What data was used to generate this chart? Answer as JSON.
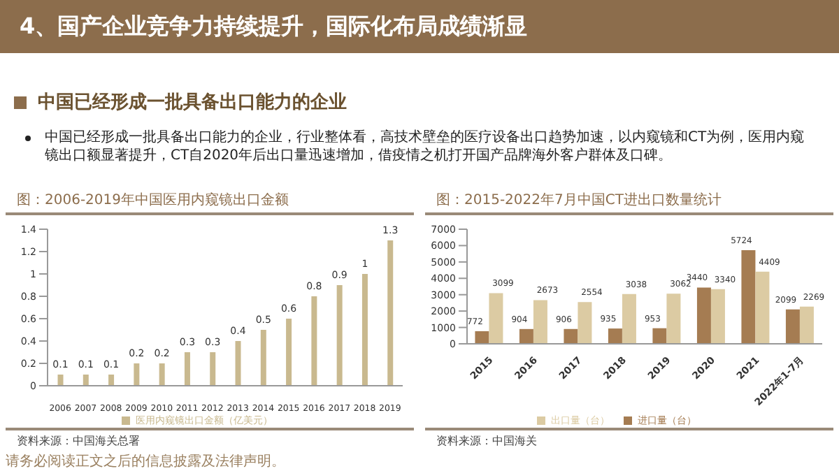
{
  "chart_data": [
    {
      "type": "other",
      "title": "4、国产企业竞争力持续提升，国际化布局成绩渐显",
      "subtitle": "中国已经形成一批具备出口能力的企业",
      "annotations": [
        "中国已经形成一批具备出口能力的企业，行业整体看，高技术壁垒的医疗设备出口趋势加速，以内窥镜和CT为例，医用内窥镜出口额显著提升，CT自2020年后出口量迅速增加，借疫情之机打开国产品牌海外客户群体及口碑。",
        "请务必阅读正文之后的信息披露及法律声明。"
      ]
    },
    {
      "type": "bar",
      "title": "图：2006-2019年中国医用内窥镜出口金额",
      "categories": [
        "2006",
        "2007",
        "2008",
        "2009",
        "2010",
        "2011",
        "2012",
        "2013",
        "2014",
        "2015",
        "2016",
        "2017",
        "2018",
        "2019"
      ],
      "series": [
        {
          "name": "医用内窥镜出口金额（亿美元）",
          "color": "#c9b98f",
          "values": [
            0.1,
            0.1,
            0.1,
            0.2,
            0.2,
            0.3,
            0.3,
            0.4,
            0.5,
            0.6,
            0.8,
            0.9,
            1,
            1.3
          ]
        }
      ],
      "ylim": [
        0,
        1.4
      ],
      "yticks": [
        0,
        0.2,
        0.4,
        0.6,
        0.8,
        1,
        1.2,
        1.4
      ],
      "data_labels": true,
      "grid": false,
      "legend": "bottom",
      "annotations": [
        "资料来源：中国海关总署"
      ]
    },
    {
      "type": "bar",
      "title": "图：2015-2022年7月中国CT进出口数量统计",
      "categories": [
        "2015",
        "2016",
        "2017",
        "2018",
        "2019",
        "2020",
        "2021",
        "2022年1-7月"
      ],
      "series": [
        {
          "name": "进口量（台）",
          "color": "#a57c52",
          "values": [
            772,
            904,
            906,
            935,
            953,
            3440,
            5724,
            2099
          ]
        },
        {
          "name": "出口量（台）",
          "color": "#dccba3",
          "values": [
            3099,
            2673,
            2554,
            3038,
            3062,
            3340,
            4409,
            2269
          ]
        }
      ],
      "ylim": [
        0,
        7000
      ],
      "yticks": [
        0,
        1000,
        2000,
        3000,
        4000,
        5000,
        6000,
        7000
      ],
      "data_labels": true,
      "grid": false,
      "legend": "bottom",
      "annotations": [
        "资料来源：中国海关"
      ]
    }
  ]
}
